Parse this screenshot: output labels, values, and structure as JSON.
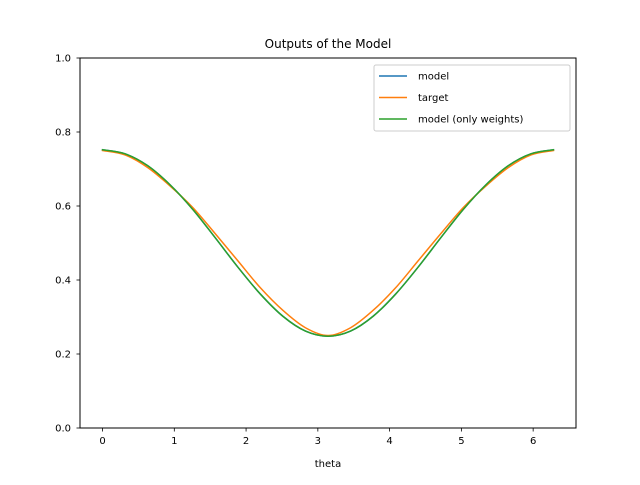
{
  "chart_data": {
    "type": "line",
    "title": "Outputs of the Model",
    "xlabel": "theta",
    "ylabel": "",
    "xlim": [
      -0.314,
      6.597
    ],
    "ylim": [
      0.0,
      1.0
    ],
    "xticks": [
      "0",
      "1",
      "2",
      "3",
      "4",
      "5",
      "6"
    ],
    "yticks": [
      "0.0",
      "0.2",
      "0.4",
      "0.6",
      "0.8",
      "1.0"
    ],
    "grid": false,
    "legend_position": "top-right",
    "x": [
      0.0,
      0.314,
      0.628,
      0.942,
      1.257,
      1.571,
      1.885,
      2.199,
      2.513,
      2.827,
      3.142,
      3.456,
      3.77,
      4.084,
      4.398,
      4.712,
      5.027,
      5.341,
      5.655,
      5.969,
      6.283
    ],
    "series": [
      {
        "name": "model",
        "color": "#1f77b4",
        "values": [
          0.752,
          0.741,
          0.709,
          0.657,
          0.591,
          0.514,
          0.435,
          0.362,
          0.302,
          0.262,
          0.248,
          0.262,
          0.302,
          0.362,
          0.435,
          0.514,
          0.591,
          0.657,
          0.709,
          0.741,
          0.752
        ]
      },
      {
        "name": "target",
        "color": "#ff7f0e",
        "values": [
          0.75,
          0.738,
          0.704,
          0.654,
          0.596,
          0.525,
          0.452,
          0.379,
          0.318,
          0.271,
          0.25,
          0.271,
          0.318,
          0.379,
          0.452,
          0.525,
          0.596,
          0.654,
          0.704,
          0.738,
          0.75
        ]
      },
      {
        "name": "model (only weights)",
        "color": "#2ca02c",
        "values": [
          0.752,
          0.741,
          0.709,
          0.657,
          0.591,
          0.514,
          0.435,
          0.362,
          0.302,
          0.262,
          0.248,
          0.262,
          0.302,
          0.362,
          0.435,
          0.514,
          0.591,
          0.657,
          0.709,
          0.741,
          0.752
        ]
      }
    ]
  }
}
